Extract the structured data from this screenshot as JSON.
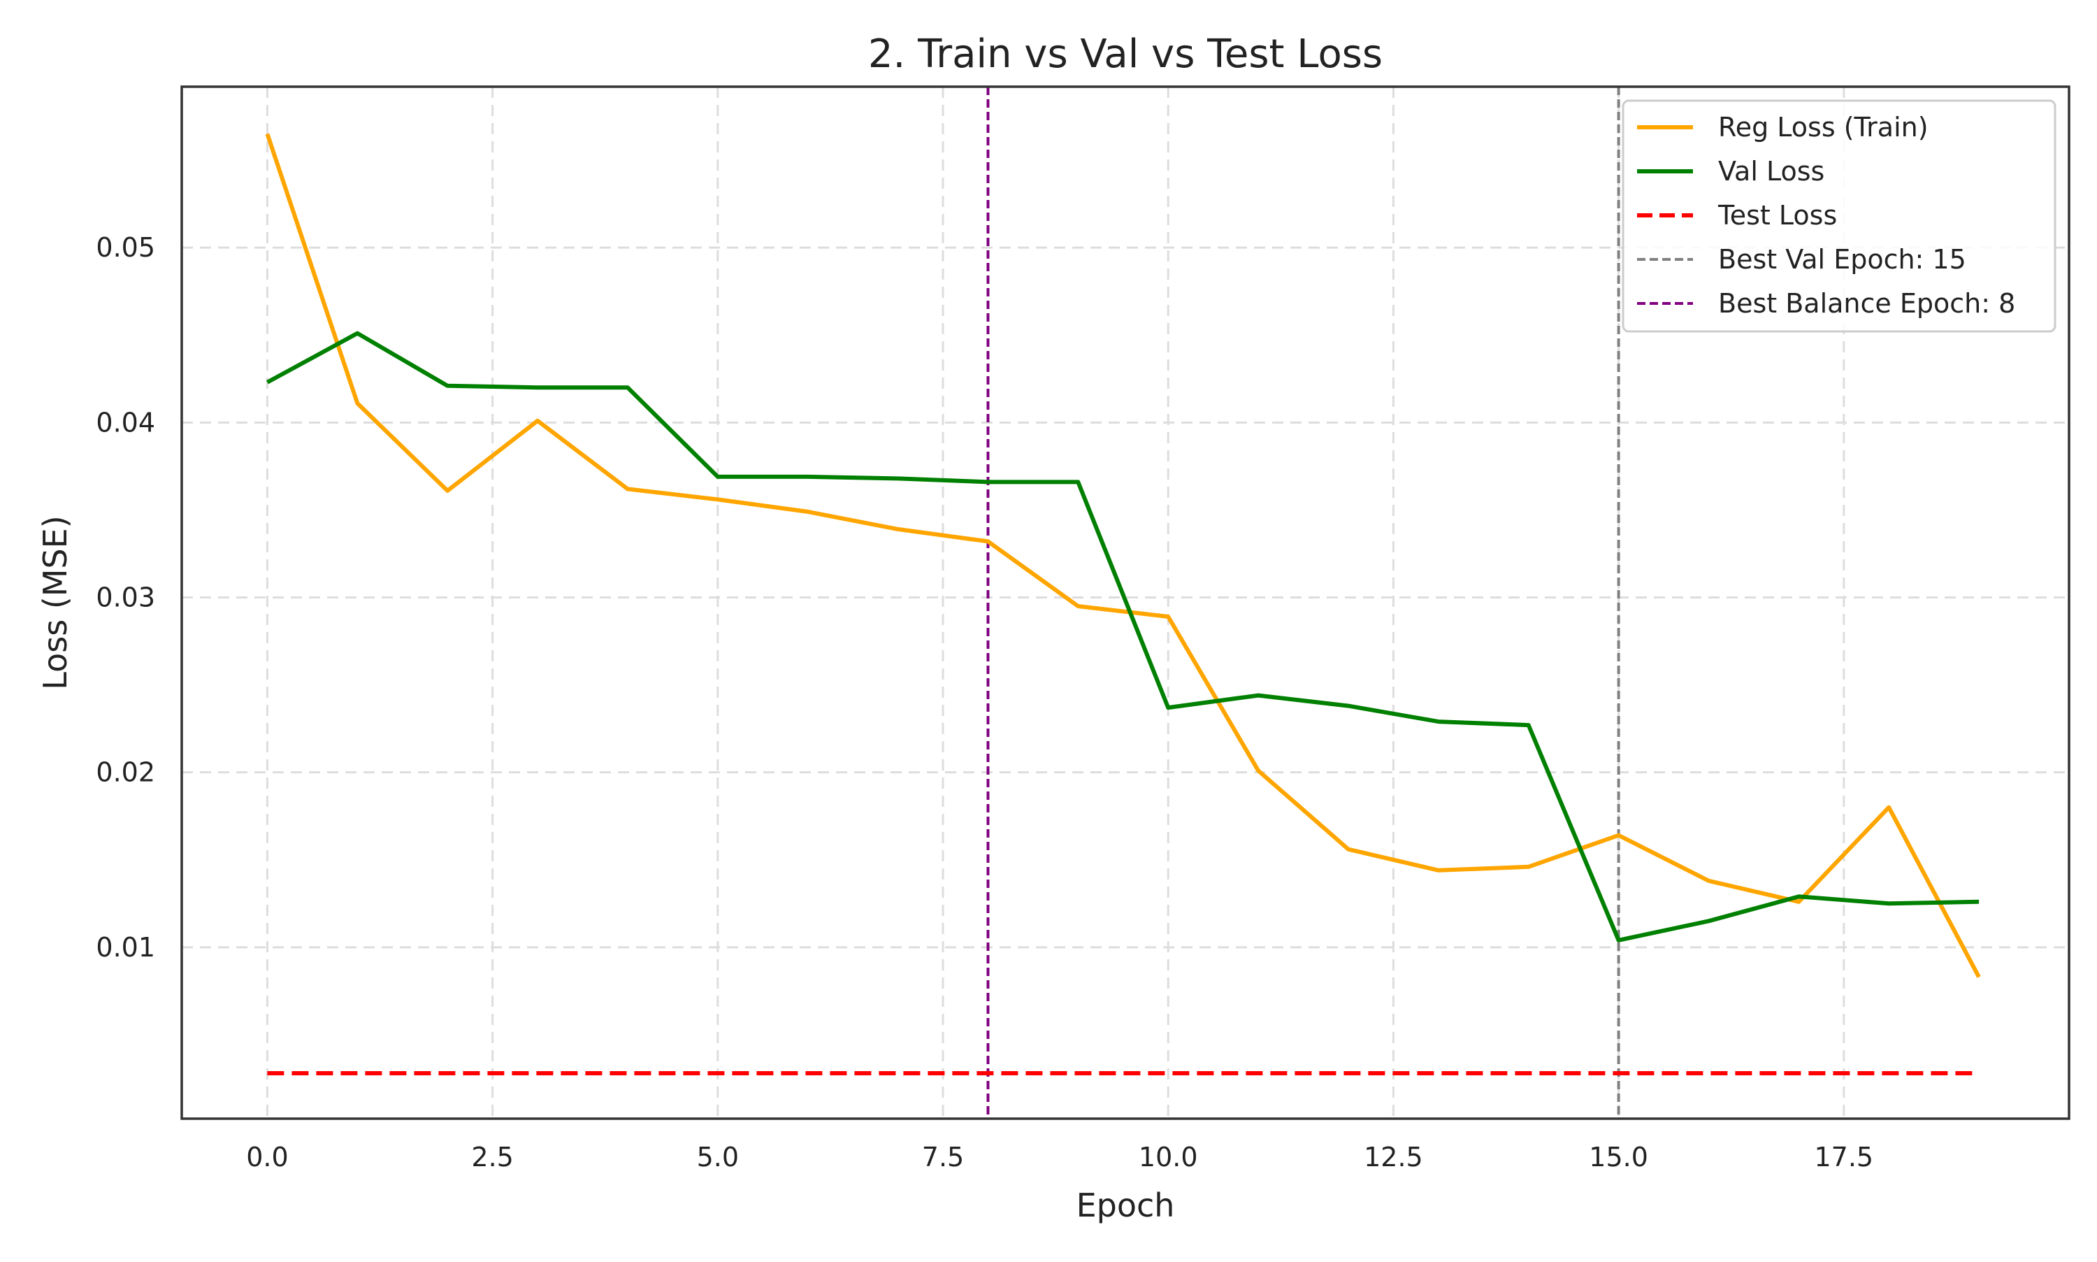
{
  "chart_data": {
    "type": "line",
    "title": "2. Train vs Val vs Test Loss",
    "xlabel": "Epoch",
    "ylabel": "Loss (MSE)",
    "xlim": [
      -0.95,
      20.0
    ],
    "ylim": [
      0.0002,
      0.0592
    ],
    "xticks": [
      0.0,
      2.5,
      5.0,
      7.5,
      10.0,
      12.5,
      15.0,
      17.5
    ],
    "xtick_labels": [
      "0.0",
      "2.5",
      "5.0",
      "7.5",
      "10.0",
      "12.5",
      "15.0",
      "17.5"
    ],
    "yticks": [
      0.01,
      0.02,
      0.03,
      0.04,
      0.05
    ],
    "ytick_labels": [
      "0.01",
      "0.02",
      "0.03",
      "0.04",
      "0.05"
    ],
    "grid": true,
    "legend_position": "top-right",
    "x": [
      0,
      1,
      2,
      3,
      4,
      5,
      6,
      7,
      8,
      9,
      10,
      11,
      12,
      13,
      14,
      15,
      16,
      17,
      18,
      19
    ],
    "series": [
      {
        "name": "Reg Loss (Train)",
        "color": "#ffa500",
        "style": "solid",
        "values": [
          0.0565,
          0.0411,
          0.0361,
          0.0401,
          0.0362,
          0.0356,
          0.0349,
          0.0339,
          0.0332,
          0.0295,
          0.0289,
          0.0201,
          0.0156,
          0.0144,
          0.0146,
          0.0164,
          0.0138,
          0.0126,
          0.018,
          0.0083
        ]
      },
      {
        "name": "Val Loss",
        "color": "#008000",
        "style": "solid",
        "values": [
          0.0423,
          0.0451,
          0.0421,
          0.042,
          0.042,
          0.0369,
          0.0369,
          0.0368,
          0.0366,
          0.0366,
          0.0237,
          0.0244,
          0.0238,
          0.0229,
          0.0227,
          0.0104,
          0.0115,
          0.0129,
          0.0125,
          0.0126
        ]
      },
      {
        "name": "Test Loss",
        "color": "#ff0000",
        "style": "dashed",
        "values": [
          0.0028,
          0.0028,
          0.0028,
          0.0028,
          0.0028,
          0.0028,
          0.0028,
          0.0028,
          0.0028,
          0.0028,
          0.0028,
          0.0028,
          0.0028,
          0.0028,
          0.0028,
          0.0028,
          0.0028,
          0.0028,
          0.0028,
          0.0028
        ]
      }
    ],
    "vlines": [
      {
        "name": "Best Val Epoch: 15",
        "x": 15,
        "color": "#808080"
      },
      {
        "name": "Best Balance Epoch: 8",
        "x": 8,
        "color": "#800080"
      }
    ]
  }
}
